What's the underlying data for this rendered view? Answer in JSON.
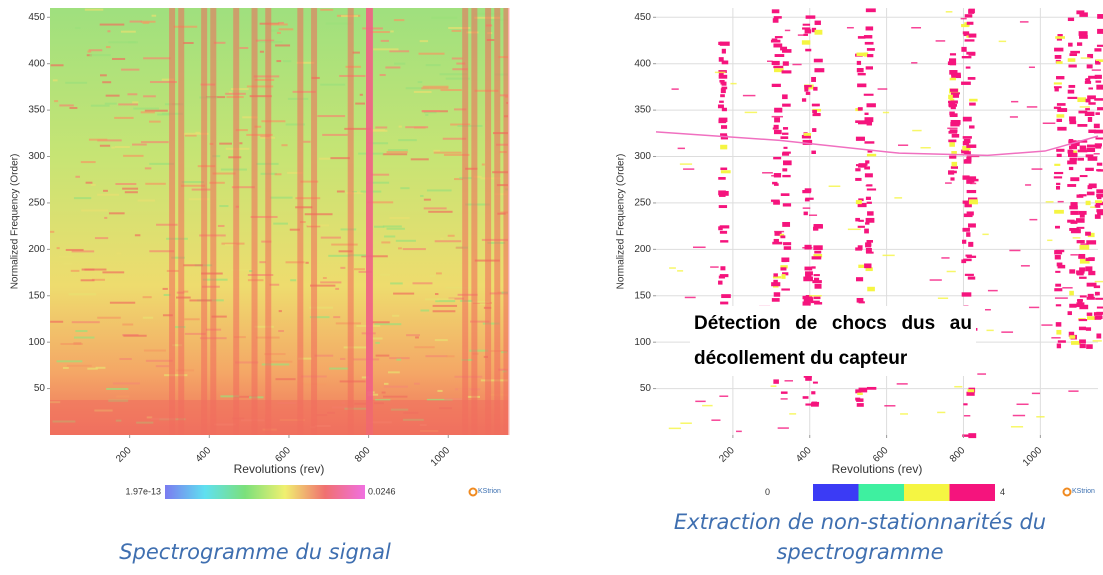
{
  "chart_data": [
    {
      "type": "heatmap",
      "xlabel": "Revolutions (rev)",
      "ylabel": "Normalized Frequency (Order)",
      "xlim": [
        0,
        1150
      ],
      "ylim": [
        0,
        460
      ],
      "xticks": [
        200,
        400,
        600,
        800,
        1000
      ],
      "yticks": [
        50,
        100,
        150,
        200,
        250,
        300,
        350,
        400,
        450
      ],
      "colorbar_labels": [
        "1.97e-13",
        "0.0246"
      ],
      "colorbar_colors": [
        "#7b7bf0",
        "#5fe0f0",
        "#7be07b",
        "#f0f070",
        "#f07070",
        "#f070e0"
      ],
      "logo": "KStrion",
      "caption": "Spectrogramme du signal"
    },
    {
      "type": "heatmap",
      "xlabel": "Revolutions (rev)",
      "ylabel": "Normalized Frequency (Order)",
      "xlim": [
        0,
        1150
      ],
      "ylim": [
        0,
        460
      ],
      "xticks": [
        200,
        400,
        600,
        800,
        1000
      ],
      "yticks": [
        50,
        100,
        150,
        200,
        250,
        300,
        350,
        400,
        450
      ],
      "grid": true,
      "colorbar_labels": [
        "0",
        "4"
      ],
      "colorbar_colors": [
        "#3b3bf5",
        "#3ef0a0",
        "#f5f542",
        "#f5147d"
      ],
      "logo": "KStrion",
      "annotation": "Détection de chocs dus au décollement du capteur",
      "caption": "Extraction de non-stationnarités du spectrogramme"
    }
  ]
}
